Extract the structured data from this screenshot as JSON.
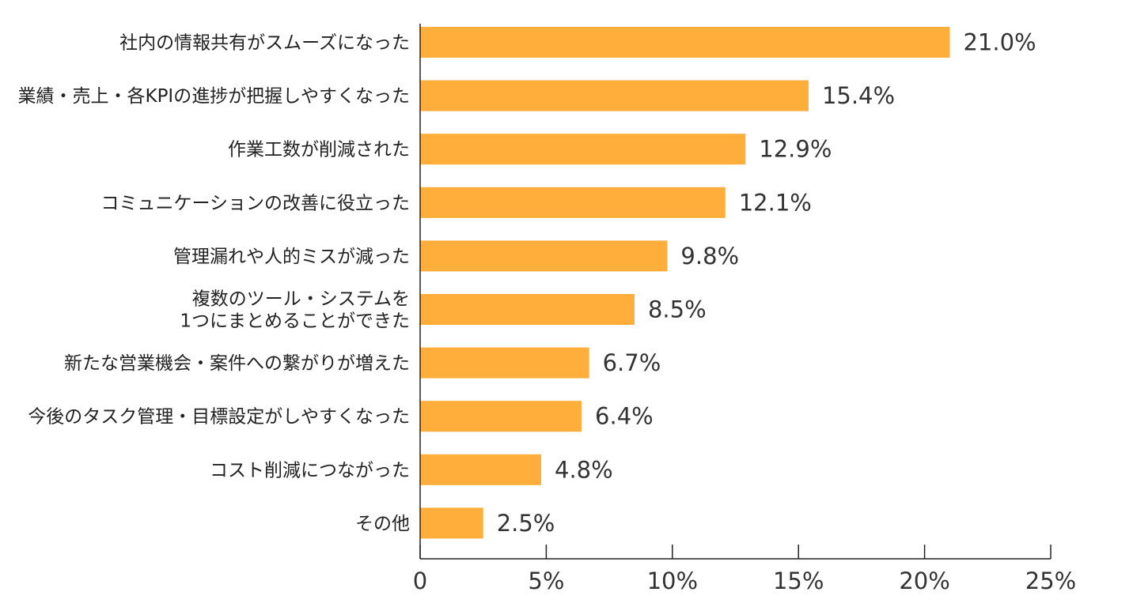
{
  "chart_data": {
    "type": "bar",
    "orientation": "horizontal",
    "categories": [
      [
        "社内の情報共有がスムーズになった"
      ],
      [
        "業績・売上・各KPIの進捗が把握しやすくなった"
      ],
      [
        "作業工数が削減された"
      ],
      [
        "コミュニケーションの改善に役立った"
      ],
      [
        "管理漏れや人的ミスが減った"
      ],
      [
        "複数のツール・システムを",
        "1つにまとめることができた"
      ],
      [
        "新たな営業機会・案件への繋がりが増えた"
      ],
      [
        "今後のタスク管理・目標設定がしやすくなった"
      ],
      [
        "コスト削減につながった"
      ],
      [
        "その他"
      ]
    ],
    "values": [
      21.0,
      15.4,
      12.9,
      12.1,
      9.8,
      8.5,
      6.7,
      6.4,
      4.8,
      2.5
    ],
    "value_labels": [
      "21.0%",
      "15.4%",
      "12.9%",
      "12.1%",
      "9.8%",
      "8.5%",
      "6.7%",
      "6.4%",
      "4.8%",
      "2.5%"
    ],
    "xlim": [
      0,
      25
    ],
    "x_ticks": [
      0,
      5,
      10,
      15,
      20,
      25
    ],
    "x_tick_labels": [
      "0",
      "5%",
      "10%",
      "15%",
      "20%",
      "25%"
    ],
    "grid": false,
    "bar_color": "#FFAE3B",
    "axis_color": "#222222"
  }
}
